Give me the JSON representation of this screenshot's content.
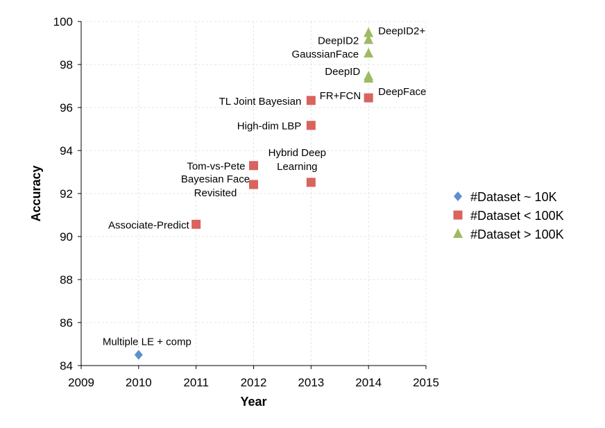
{
  "chart_data": {
    "type": "scatter",
    "xlabel": "Year",
    "ylabel": "Accuracy",
    "xlim": [
      2009,
      2015
    ],
    "ylim": [
      84,
      100
    ],
    "xticks": [
      "2009",
      "2010",
      "2011",
      "2012",
      "2013",
      "2014",
      "2015"
    ],
    "yticks": [
      "84",
      "86",
      "88",
      "90",
      "92",
      "94",
      "96",
      "98",
      "100"
    ],
    "grid": true,
    "legend_position": "right",
    "series": [
      {
        "name": "#Dataset ~ 10K",
        "marker": "diamond",
        "color": "#5b8fd0",
        "points": [
          {
            "label": "Multiple LE + comp",
            "x": 2010,
            "y": 84.5
          }
        ]
      },
      {
        "name": "#Dataset < 100K",
        "marker": "square",
        "color": "#d9635e",
        "points": [
          {
            "label": "Associate-Predict",
            "x": 2011,
            "y": 90.57
          },
          {
            "label": "Tom-vs-Pete",
            "x": 2012,
            "y": 93.3
          },
          {
            "label": "Bayesian Face Revisited",
            "x": 2012,
            "y": 92.42
          },
          {
            "label": "High-dim LBP",
            "x": 2013,
            "y": 95.17
          },
          {
            "label": "TL Joint Bayesian",
            "x": 2013,
            "y": 96.33
          },
          {
            "label": "Hybrid Deep Learning",
            "x": 2013,
            "y": 92.52
          },
          {
            "label": "FR+FCN",
            "x": 2014,
            "y": 96.45
          }
        ]
      },
      {
        "name": "#Dataset > 100K",
        "marker": "triangle",
        "color": "#9dbb61",
        "points": [
          {
            "label": "DeepFace",
            "x": 2014,
            "y": 97.35
          },
          {
            "label": "DeepID",
            "x": 2014,
            "y": 97.45
          },
          {
            "label": "GaussianFace",
            "x": 2014,
            "y": 98.52
          },
          {
            "label": "DeepID2",
            "x": 2014,
            "y": 99.15
          },
          {
            "label": "DeepID2+",
            "x": 2014,
            "y": 99.47
          }
        ]
      }
    ]
  }
}
